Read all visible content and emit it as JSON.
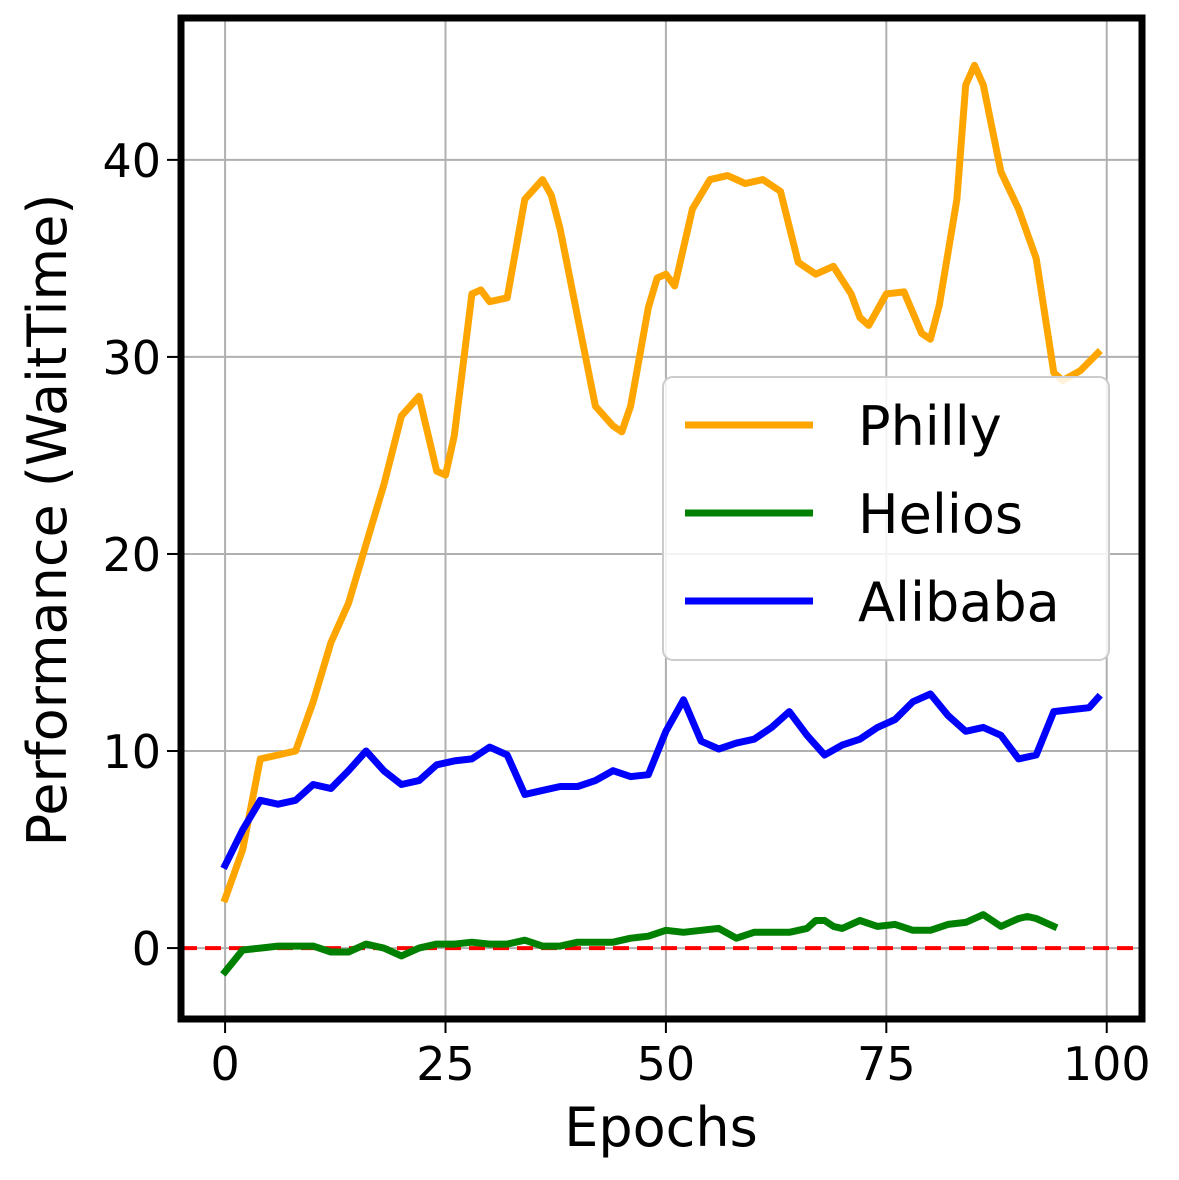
{
  "chart_data": {
    "type": "line",
    "xlabel": "Epochs",
    "ylabel": "Performance (WaitTime)",
    "xlim": [
      -5,
      104
    ],
    "ylim": [
      -3.6,
      47.2
    ],
    "xticks": [
      0,
      25,
      50,
      75,
      100
    ],
    "yticks": [
      0,
      10,
      20,
      30,
      40
    ],
    "grid": true,
    "legend_placement": "center-right",
    "reference_line": {
      "y": 0,
      "color": "#ff0000",
      "style": "dashed"
    },
    "series": [
      {
        "name": "Philly",
        "color": "#ffa500",
        "x": [
          0,
          2,
          4,
          6,
          8,
          10,
          12,
          14,
          16,
          18,
          20,
          22,
          24,
          25,
          26,
          28,
          29,
          30,
          32,
          34,
          36,
          37,
          38,
          40,
          42,
          44,
          45,
          46,
          47,
          48,
          49,
          50,
          51,
          53,
          55,
          57,
          59,
          61,
          63,
          65,
          67,
          69,
          71,
          72,
          73,
          75,
          77,
          79,
          80,
          81,
          83,
          84,
          85,
          86,
          88,
          90,
          92,
          94,
          95,
          97,
          99
        ],
        "y": [
          2.5,
          5.0,
          9.6,
          9.8,
          10.0,
          12.5,
          15.5,
          17.5,
          20.5,
          23.5,
          27.0,
          28.0,
          24.2,
          24.0,
          26.0,
          33.2,
          33.4,
          32.8,
          33.0,
          38.0,
          39.0,
          38.2,
          36.5,
          32.0,
          27.5,
          26.5,
          26.2,
          27.5,
          30.0,
          32.5,
          34.0,
          34.2,
          33.6,
          37.5,
          39.0,
          39.2,
          38.8,
          39.0,
          38.4,
          34.8,
          34.2,
          34.6,
          33.2,
          32.0,
          31.6,
          33.2,
          33.3,
          31.2,
          30.9,
          32.6,
          38.0,
          43.8,
          44.8,
          43.8,
          39.4,
          37.5,
          35.0,
          29.2,
          28.8,
          29.3,
          30.2
        ]
      },
      {
        "name": "Helios",
        "color": "#008000",
        "x": [
          0,
          2,
          4,
          6,
          8,
          10,
          12,
          14,
          16,
          18,
          20,
          22,
          24,
          26,
          28,
          30,
          32,
          34,
          36,
          38,
          40,
          42,
          44,
          46,
          48,
          50,
          52,
          54,
          56,
          58,
          60,
          62,
          64,
          66,
          67,
          68,
          69,
          70,
          72,
          74,
          76,
          78,
          80,
          82,
          84,
          86,
          88,
          90,
          91,
          92,
          94
        ],
        "y": [
          -1.2,
          -0.1,
          0.0,
          0.1,
          0.1,
          0.1,
          -0.2,
          -0.2,
          0.2,
          0.0,
          -0.4,
          0.0,
          0.2,
          0.2,
          0.3,
          0.2,
          0.2,
          0.4,
          0.1,
          0.1,
          0.3,
          0.3,
          0.3,
          0.5,
          0.6,
          0.9,
          0.8,
          0.9,
          1.0,
          0.5,
          0.8,
          0.8,
          0.8,
          1.0,
          1.4,
          1.4,
          1.1,
          1.0,
          1.4,
          1.1,
          1.2,
          0.9,
          0.9,
          1.2,
          1.3,
          1.7,
          1.1,
          1.5,
          1.6,
          1.5,
          1.1
        ]
      },
      {
        "name": "Alibaba",
        "color": "#0000ff",
        "x": [
          0,
          2,
          4,
          6,
          8,
          10,
          12,
          14,
          16,
          18,
          20,
          22,
          24,
          26,
          28,
          30,
          32,
          34,
          36,
          38,
          40,
          42,
          44,
          46,
          48,
          50,
          52,
          54,
          56,
          58,
          60,
          62,
          64,
          66,
          68,
          70,
          72,
          74,
          76,
          78,
          80,
          82,
          84,
          86,
          88,
          90,
          92,
          94,
          96,
          98,
          99
        ],
        "y": [
          4.2,
          6.0,
          7.5,
          7.3,
          7.5,
          8.3,
          8.1,
          9.0,
          10.0,
          9.0,
          8.3,
          8.5,
          9.3,
          9.5,
          9.6,
          10.2,
          9.8,
          7.8,
          8.0,
          8.2,
          8.2,
          8.5,
          9.0,
          8.7,
          8.8,
          11.0,
          12.6,
          10.5,
          10.1,
          10.4,
          10.6,
          11.2,
          12.0,
          10.8,
          9.8,
          10.3,
          10.6,
          11.2,
          11.6,
          12.5,
          12.9,
          11.8,
          11.0,
          11.2,
          10.8,
          9.6,
          9.8,
          12.0,
          12.1,
          12.2,
          12.7
        ]
      }
    ]
  }
}
